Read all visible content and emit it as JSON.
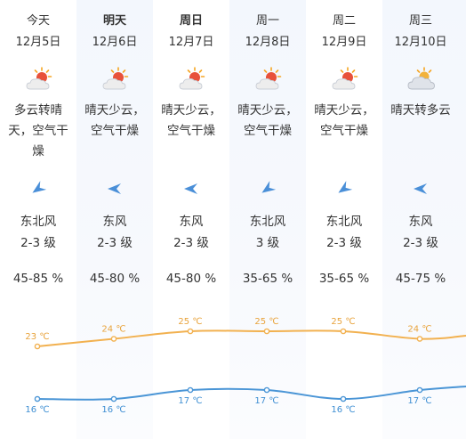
{
  "colors": {
    "high_line": "#f2b150",
    "low_line": "#4a95d6",
    "high_label": "#e8a33c",
    "low_label": "#3f8fd3",
    "column_alt_bg": "#f4f7fd"
  },
  "days": [
    {
      "name": "今天",
      "date": "12月5日",
      "icon": "partly-cloudy-sun-icon",
      "desc": "多云转晴天，空气干燥",
      "wind_icon": "wind-direction-icon",
      "wind_dir": "东北风",
      "wind_level": "2-3 级",
      "humidity": "45-85 %",
      "high": "23 ℃",
      "low": "16 ℃"
    },
    {
      "name": "明天",
      "date": "12月6日",
      "icon": "partly-cloudy-sun-icon",
      "desc": "晴天少云，空气干燥",
      "wind_icon": "wind-direction-icon",
      "wind_dir": "东风",
      "wind_level": "2-3 级",
      "humidity": "45-80 %",
      "high": "24 ℃",
      "low": "16 ℃"
    },
    {
      "name": "周日",
      "date": "12月7日",
      "icon": "partly-cloudy-sun-icon",
      "desc": "晴天少云，空气干燥",
      "wind_icon": "wind-direction-icon",
      "wind_dir": "东风",
      "wind_level": "2-3 级",
      "humidity": "45-80 %",
      "high": "25 ℃",
      "low": "17 ℃"
    },
    {
      "name": "周一",
      "date": "12月8日",
      "icon": "partly-cloudy-sun-icon",
      "desc": "晴天少云，空气干燥",
      "wind_icon": "wind-direction-icon",
      "wind_dir": "东北风",
      "wind_level": "3 级",
      "humidity": "35-65 %",
      "high": "25 ℃",
      "low": "17 ℃"
    },
    {
      "name": "周二",
      "date": "12月9日",
      "icon": "partly-cloudy-sun-icon",
      "desc": "晴天少云，空气干燥",
      "wind_icon": "wind-direction-icon",
      "wind_dir": "东北风",
      "wind_level": "2-3 级",
      "humidity": "35-65 %",
      "high": "25 ℃",
      "low": "16 ℃"
    },
    {
      "name": "周三",
      "date": "12月10日",
      "icon": "cloudy-sun-icon",
      "desc": "晴天转多云",
      "wind_icon": "wind-direction-icon",
      "wind_dir": "东风",
      "wind_level": "2-3 级",
      "humidity": "45-75 %",
      "high": "24 ℃",
      "low": "17 ℃"
    }
  ],
  "chart_data": {
    "type": "line",
    "categories": [
      "12月5日",
      "12月6日",
      "12月7日",
      "12月8日",
      "12月9日",
      "12月10日"
    ],
    "series": [
      {
        "values": [
          23,
          24,
          25,
          25,
          25,
          24
        ]
      },
      {
        "values": [
          16,
          16,
          17,
          17,
          16,
          17
        ]
      }
    ],
    "unit": "℃",
    "grid": false,
    "legend": "none"
  }
}
